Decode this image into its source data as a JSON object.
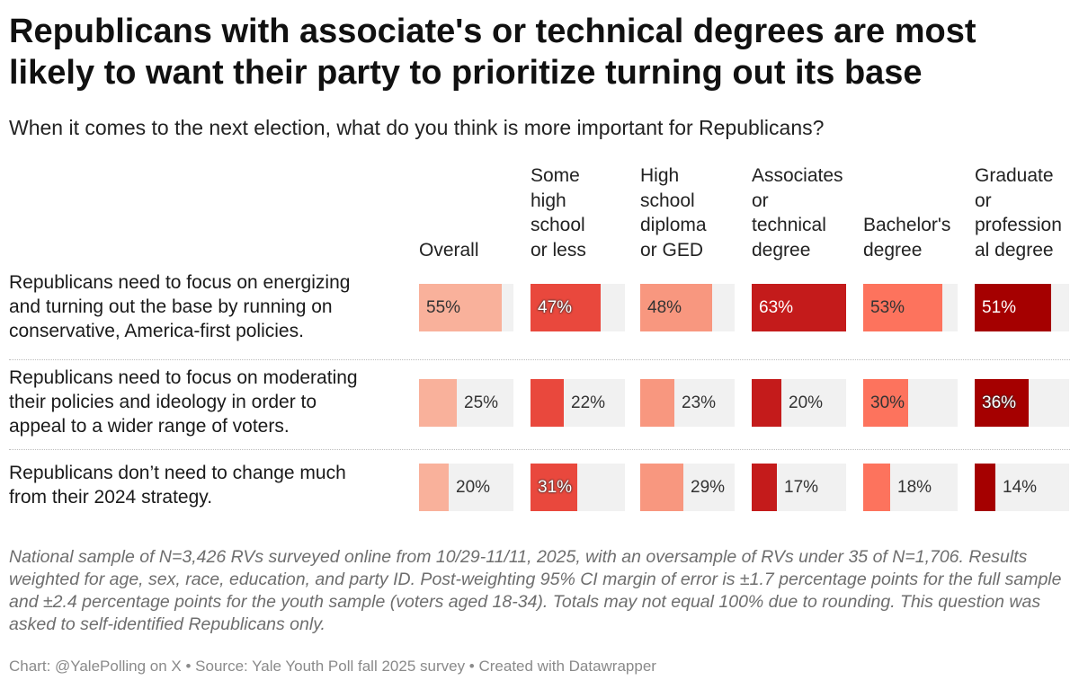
{
  "title": "Republicans with associate's or technical degrees are most likely to want their party to prioritize turning out its base",
  "subtitle": "When it comes to the next election, what do you think is more important for Republicans?",
  "notes": "National sample of N=3,426 RVs surveyed online from 10/29-11/11, 2025, with an oversample of RVs under 35 of N=1,706. Results weighted for age, sex, race, education, and party ID. Post-weighting 95% CI margin of error is ±1.7 percentage points for the full sample and ±2.4 percentage points for the youth sample (voters aged 18-34). Totals may not equal 100% due to rounding. This question was asked to self-identified Republicans only.",
  "credit": "Chart: @YalePolling on X • Source: Yale Youth Poll fall 2025 survey • Created with Datawrapper",
  "chart_data": {
    "type": "table",
    "columns": [
      "Overall",
      "Some high school or less",
      "High school diploma or GED",
      "Associates or technical degree",
      "Bachelor's degree",
      "Graduate or professional degree"
    ],
    "column_header_lines": [
      [
        "Overall"
      ],
      [
        "Some",
        "high",
        "school",
        "or less"
      ],
      [
        "High",
        "school",
        "diploma",
        "or GED"
      ],
      [
        "Associates",
        "or",
        "technical",
        "degree"
      ],
      [
        "Bachelor's",
        "degree"
      ],
      [
        "Graduate",
        "or",
        "profession",
        "al degree"
      ]
    ],
    "rows": [
      {
        "label": "Republicans need to focus on energizing and turning out the base by running on conservative, America-first policies.",
        "label_lines": [
          "Republicans need to focus on energizing",
          "and turning out the base by running on",
          "conservative, America-first policies."
        ],
        "values": [
          55,
          47,
          48,
          63,
          53,
          51
        ]
      },
      {
        "label": "Republicans need to focus on moderating their policies and ideology in order to appeal to a wider range of voters.",
        "label_lines": [
          "Republicans need to focus on moderating",
          "their policies and ideology in order to",
          "appeal to a wider range of voters."
        ],
        "values": [
          25,
          22,
          23,
          20,
          30,
          36
        ]
      },
      {
        "label": "Republicans don’t need to change much from their 2024 strategy.",
        "label_lines": [
          "Republicans don’t need to change much",
          "from their 2024 strategy."
        ],
        "values": [
          20,
          31,
          29,
          17,
          18,
          14
        ]
      }
    ],
    "value_suffix": "%",
    "scale_max": 63,
    "column_colors": [
      "#f9b19b",
      "#e9483d",
      "#f8977f",
      "#c41b1b",
      "#fd735d",
      "#a50000"
    ],
    "track_color": "#f1f1f1"
  }
}
